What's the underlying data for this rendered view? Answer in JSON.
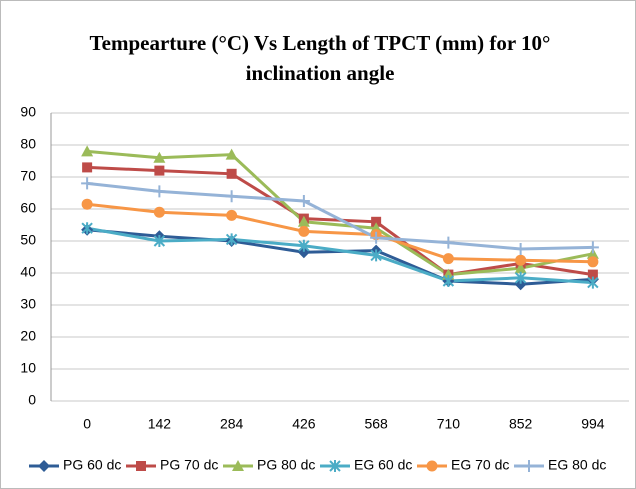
{
  "chart_data": {
    "type": "line",
    "title": "Tempearture  (°C) Vs Length of TPCT (mm) for 10° inclination angle",
    "categories": [
      "0",
      "142",
      "284",
      "426",
      "568",
      "710",
      "852",
      "994"
    ],
    "ylim": [
      0,
      90
    ],
    "yticks": [
      0,
      10,
      20,
      30,
      40,
      50,
      60,
      70,
      80,
      90
    ],
    "grid": true,
    "legend": "bottom",
    "series": [
      {
        "name": "PG 60 dc",
        "color": "#2e5c96",
        "marker": "diamond",
        "values": [
          53.5,
          51.5,
          50,
          46.5,
          47,
          37.5,
          36.5,
          38
        ]
      },
      {
        "name": "PG 70 dc",
        "color": "#be4b48",
        "marker": "square",
        "values": [
          73,
          72,
          71,
          57,
          56,
          39.5,
          43,
          39.5
        ]
      },
      {
        "name": "PG 80 dc",
        "color": "#9bbb59",
        "marker": "triangle",
        "values": [
          78,
          76,
          77,
          56,
          54,
          39.5,
          41.5,
          46
        ]
      },
      {
        "name": "EG 60 dc",
        "color": "#4bacc6",
        "marker": "star",
        "values": [
          54,
          50,
          50.5,
          48.5,
          45.5,
          37.5,
          38.5,
          37
        ]
      },
      {
        "name": "EG 70 dc",
        "color": "#f79646",
        "marker": "circle",
        "values": [
          61.5,
          59,
          58,
          53,
          52,
          44.5,
          44,
          43.5
        ]
      },
      {
        "name": "EG 80 dc",
        "color": "#95b3d7",
        "marker": "plus",
        "values": [
          68,
          65.5,
          64,
          62.5,
          51,
          49.5,
          47.5,
          48
        ]
      }
    ]
  }
}
